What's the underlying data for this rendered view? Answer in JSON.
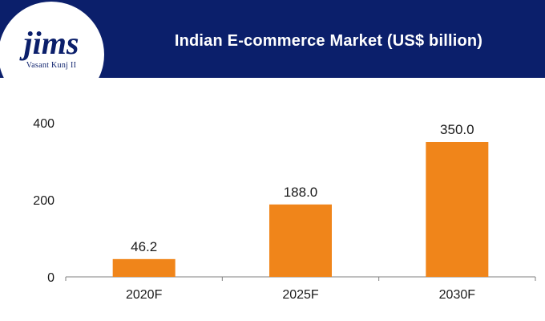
{
  "header": {
    "title": "Indian E-commerce Market (US$ billion)"
  },
  "logo": {
    "wordmark": "jims",
    "subtitle": "Vasant Kunj II"
  },
  "colors": {
    "banner": "#0b1f6b",
    "bar": "#f0851a",
    "axis": "#7f7f7f"
  },
  "chart_data": {
    "type": "bar",
    "title": "Indian E-commerce Market (US$ billion)",
    "categories": [
      "2020F",
      "2025F",
      "2030F"
    ],
    "values": [
      46.2,
      188.0,
      350.0
    ],
    "data_labels": [
      "46.2",
      "188.0",
      "350.0"
    ],
    "ylim": [
      0,
      400
    ],
    "yticks": [
      0,
      200,
      400
    ],
    "grid": false,
    "legend": "none"
  }
}
